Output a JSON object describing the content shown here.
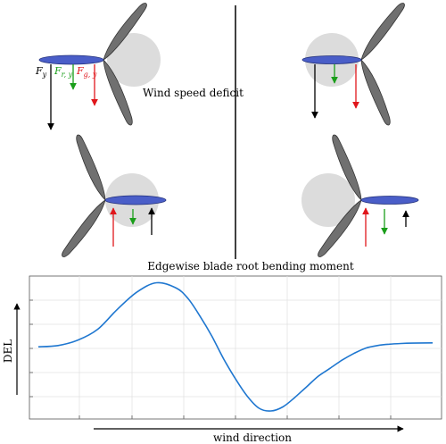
{
  "annotations": {
    "wind_speed_deficit": "Wind speed deficit"
  },
  "forces": {
    "fy_main": "F",
    "fy_sub": "y",
    "fry_main": "F",
    "fry_sub": "r, y",
    "fgy_main": "F",
    "fgy_sub": "g, y"
  },
  "colors": {
    "total_force": "#000000",
    "rotor_force": "#1a9e1a",
    "gravity_force": "#e0161b",
    "blade_highlight": "#4a5ec8",
    "wake_disc": "#dcdcdc",
    "blade": "#6e6e6e",
    "curve": "#1f77d0"
  },
  "chart_data": {
    "type": "line",
    "title": "Edgewise blade root bending moment",
    "xlabel": "wind direction",
    "ylabel": "DEL",
    "x": [
      0,
      0.05,
      0.1,
      0.15,
      0.2,
      0.25,
      0.3,
      0.35,
      0.38,
      0.41,
      0.44,
      0.47,
      0.5,
      0.53,
      0.56,
      0.59,
      0.62,
      0.65,
      0.68,
      0.71,
      0.74,
      0.77,
      0.8,
      0.83,
      0.86,
      0.89,
      0.92,
      0.95,
      1.0
    ],
    "y": [
      0.52,
      0.53,
      0.57,
      0.65,
      0.8,
      0.93,
      1.0,
      0.96,
      0.88,
      0.75,
      0.6,
      0.43,
      0.28,
      0.15,
      0.06,
      0.04,
      0.07,
      0.14,
      0.22,
      0.3,
      0.36,
      0.42,
      0.47,
      0.51,
      0.53,
      0.54,
      0.545,
      0.548,
      0.55
    ],
    "ylim": [
      0,
      1.05
    ],
    "grid": true
  }
}
